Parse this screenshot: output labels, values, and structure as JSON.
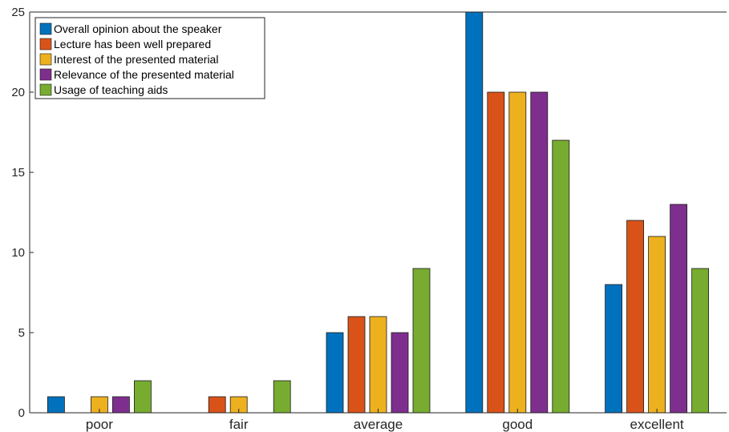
{
  "chart_data": {
    "type": "bar",
    "categories": [
      "poor",
      "fair",
      "average",
      "good",
      "excellent"
    ],
    "series": [
      {
        "name": "Overall opinion about the speaker",
        "color": "#0072BD",
        "values": [
          1,
          0,
          5,
          25,
          8
        ]
      },
      {
        "name": "Lecture has been well prepared",
        "color": "#D95319",
        "values": [
          0,
          1,
          6,
          20,
          12
        ]
      },
      {
        "name": "Interest of the presented material",
        "color": "#EDB120",
        "values": [
          1,
          1,
          6,
          20,
          11
        ]
      },
      {
        "name": "Relevance of the presented material",
        "color": "#7E2F8E",
        "values": [
          1,
          0,
          5,
          20,
          13
        ]
      },
      {
        "name": "Usage of teaching aids",
        "color": "#77AC30",
        "values": [
          2,
          2,
          9,
          17,
          9
        ]
      }
    ],
    "yticks": [
      "0",
      "5",
      "10",
      "15",
      "20",
      "25"
    ],
    "ylim": [
      0,
      25
    ],
    "legend_position": "top-left",
    "grid": false
  }
}
